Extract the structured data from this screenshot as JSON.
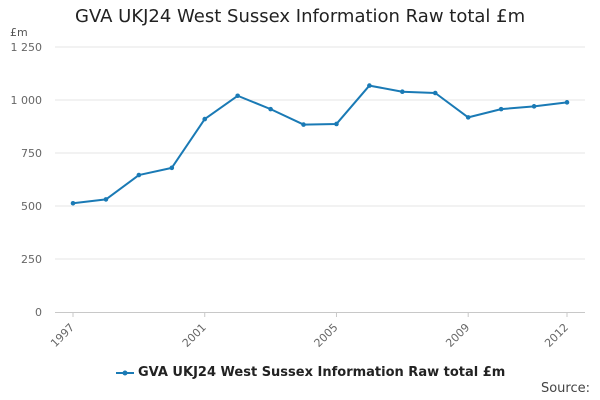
{
  "chart_data": {
    "type": "line",
    "title": "GVA UKJ24 West Sussex Information Raw total £m",
    "ylabel": "£m",
    "xlabel": "",
    "x": [
      1997,
      1998,
      1999,
      2000,
      2001,
      2002,
      2003,
      2004,
      2005,
      2006,
      2007,
      2008,
      2009,
      2010,
      2011,
      2012
    ],
    "series": [
      {
        "name": "GVA UKJ24 West Sussex Information Raw total £m",
        "values": [
          513,
          531,
          646,
          680,
          910,
          1020,
          957,
          884,
          887,
          1068,
          1039,
          1033,
          918,
          957,
          970,
          989
        ]
      }
    ],
    "ylim": [
      0,
      1250
    ],
    "yticks": [
      0,
      250,
      500,
      750,
      1000,
      1250
    ],
    "ytick_labels": [
      "0",
      "250",
      "500",
      "750",
      "1 000",
      "1 250"
    ],
    "xticks": [
      1997,
      2001,
      2005,
      2009,
      2012
    ],
    "grid": true,
    "legend_position": "bottom",
    "series_color": "#1a7ab5",
    "source_label": "Source:"
  }
}
